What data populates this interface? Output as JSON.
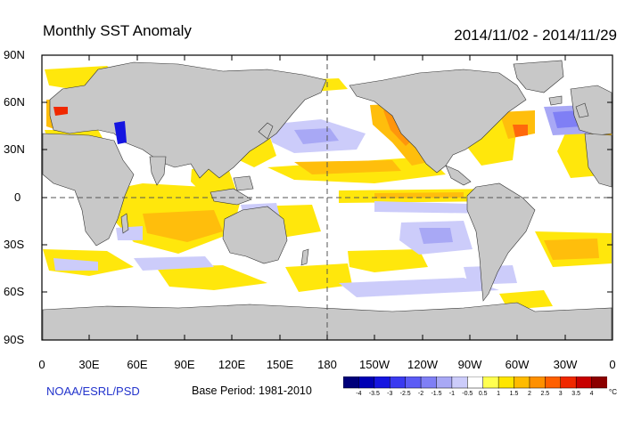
{
  "header": {
    "title": "Monthly SST Anomaly",
    "date_range": "2014/11/02 - 2014/11/29"
  },
  "axes": {
    "lat_labels": [
      "90N",
      "60N",
      "30N",
      "0",
      "30S",
      "60S",
      "90S"
    ],
    "lon_labels": [
      "0",
      "30E",
      "60E",
      "90E",
      "120E",
      "150E",
      "180",
      "150W",
      "120W",
      "90W",
      "60W",
      "30W",
      "0"
    ]
  },
  "footer": {
    "credit": "NOAA/ESRL/PSD",
    "base_period": "Base Period: 1981-2010"
  },
  "colorbar": {
    "labels": [
      "-4",
      "-3.5",
      "-3",
      "-2.5",
      "-2",
      "-1.5",
      "-1",
      "-0.5",
      "0.5",
      "1",
      "1.5",
      "2",
      "2.5",
      "3",
      "3.5",
      "4"
    ],
    "colors": [
      "#00007a",
      "#0000b4",
      "#1515e0",
      "#3a3af0",
      "#5c5cf5",
      "#7f7ff5",
      "#a8a8f5",
      "#ccccfa",
      "#ffffff",
      "#ffff50",
      "#ffe600",
      "#ffbb00",
      "#ff9000",
      "#ff6000",
      "#f02800",
      "#c80000",
      "#8c0000"
    ],
    "unit": "°C"
  },
  "map_colors": {
    "land": "#c8c8c8",
    "ocean": "#ffffff"
  }
}
